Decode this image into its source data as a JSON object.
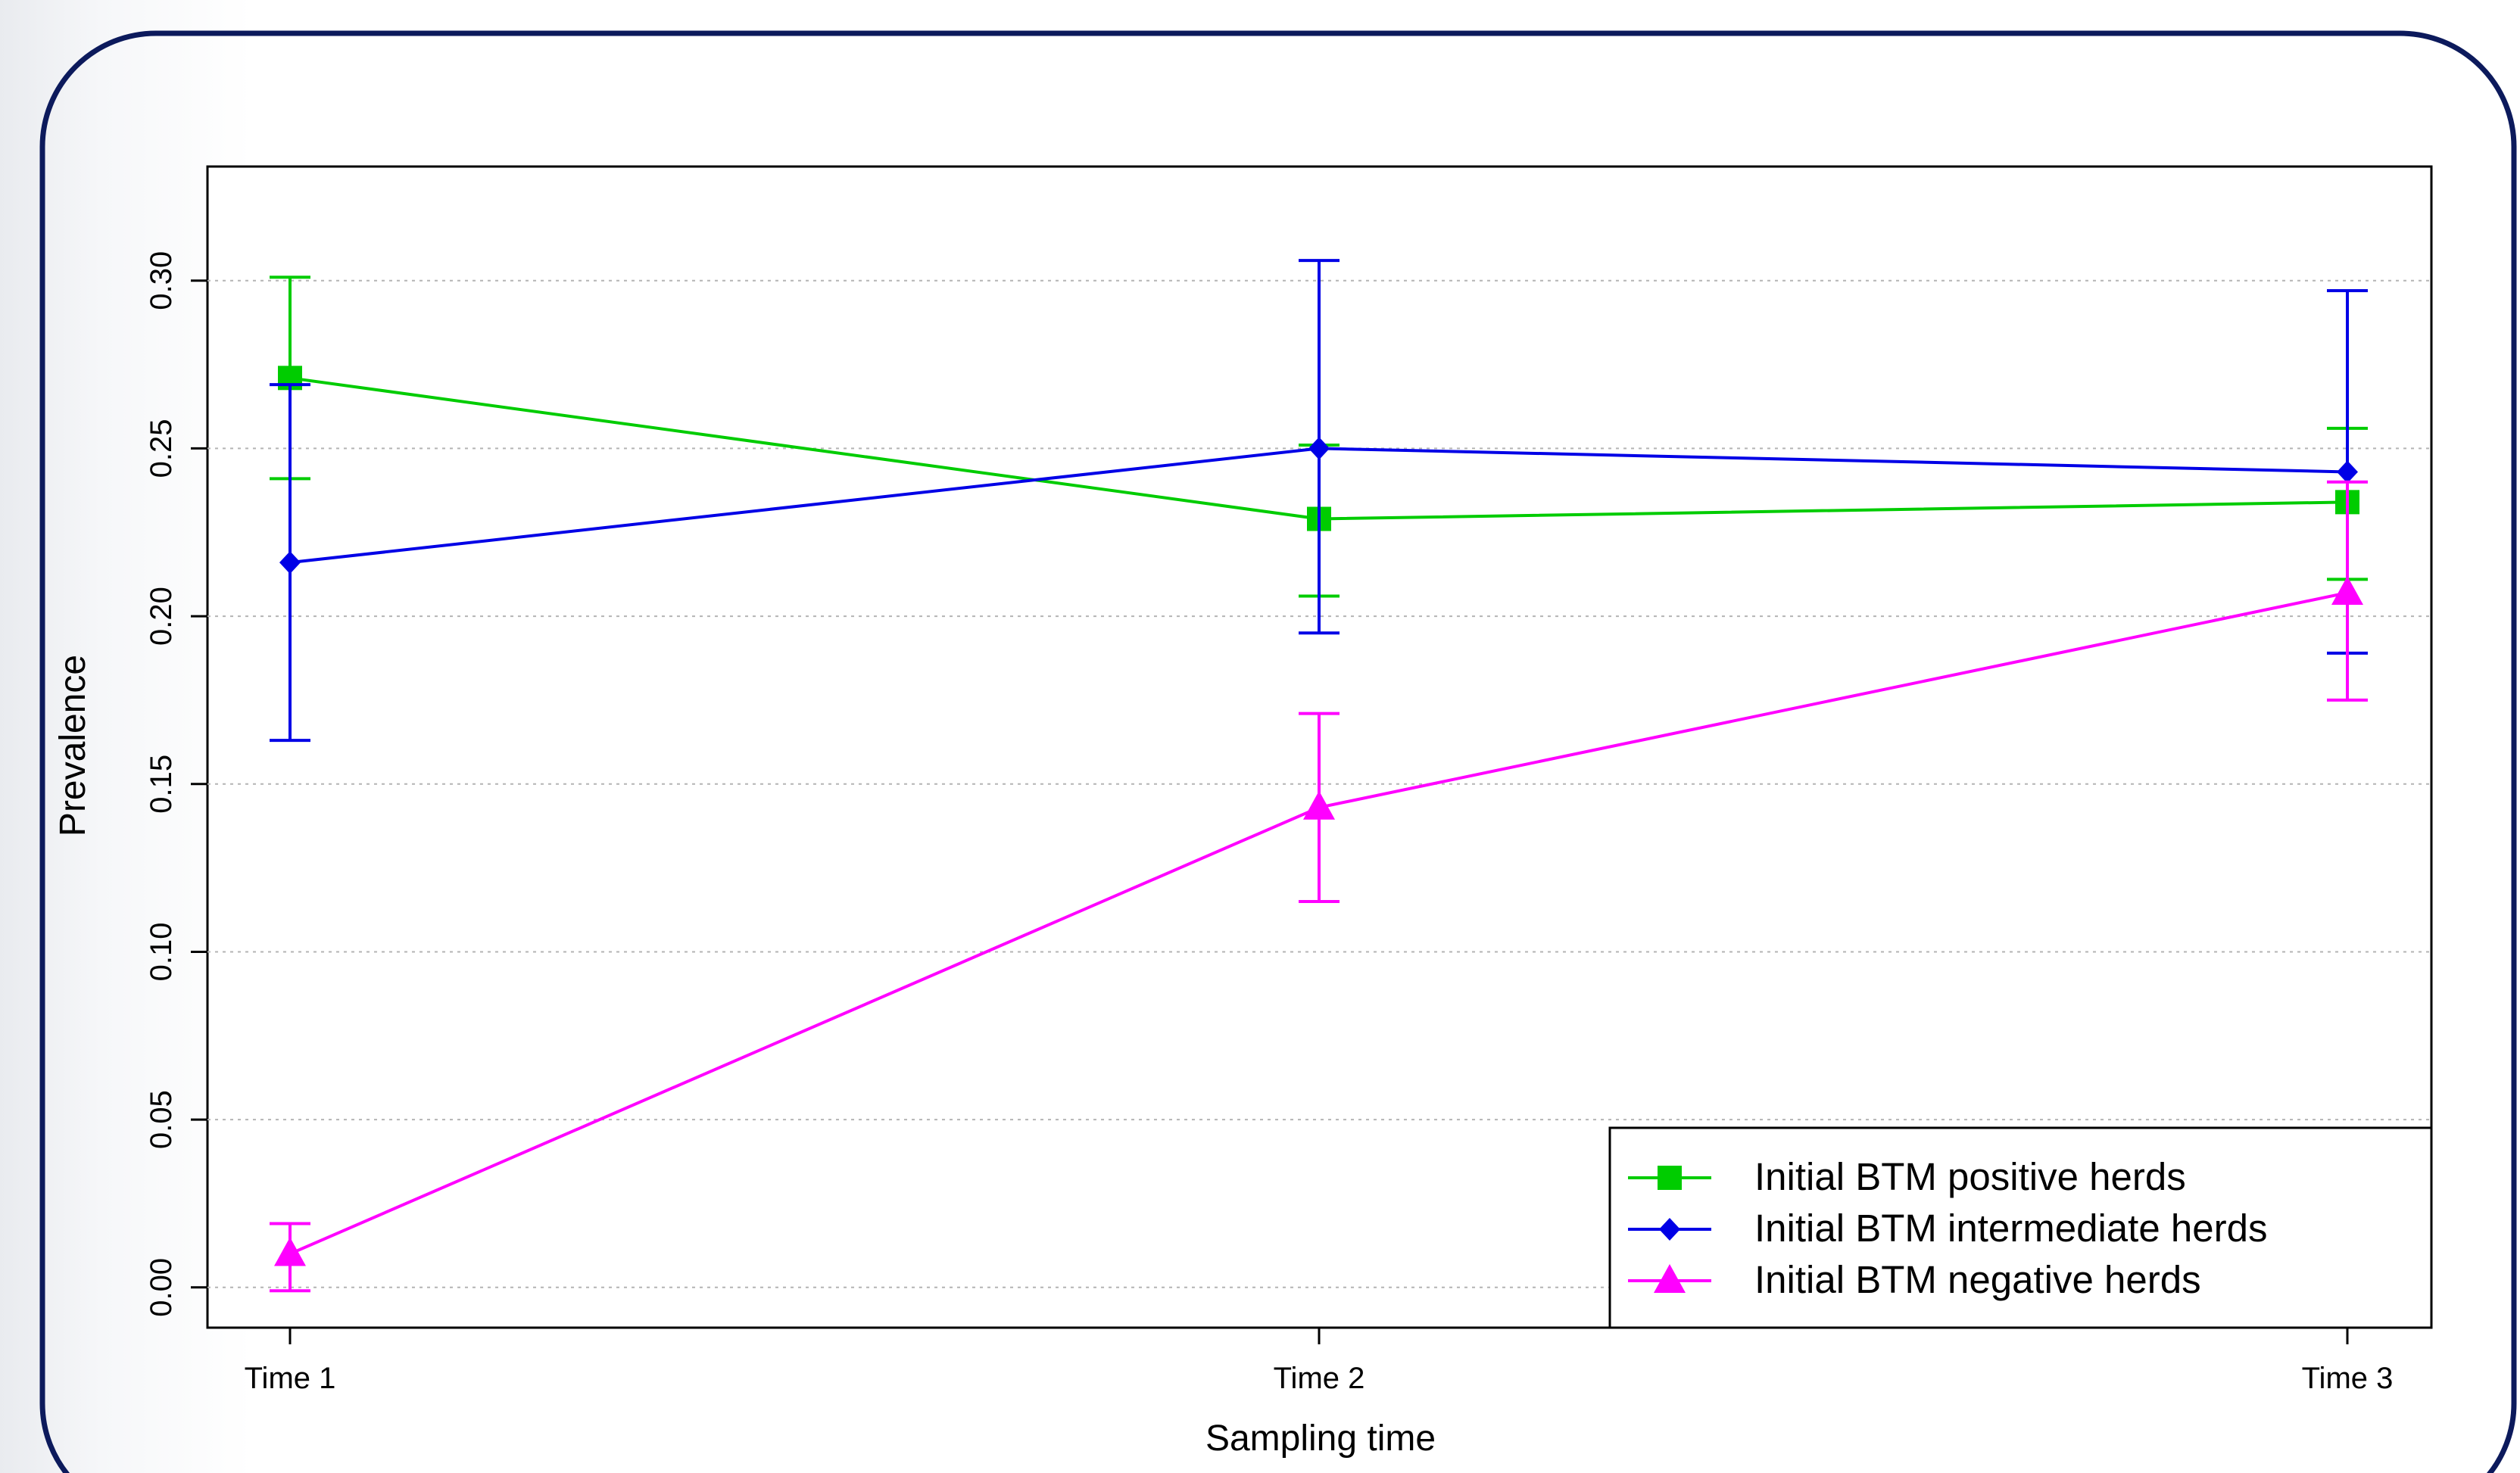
{
  "chart_data": {
    "type": "line",
    "title": "",
    "xlabel": "Sampling time",
    "ylabel": "Prevalence",
    "categories": [
      "Time 1",
      "Time 2",
      "Time 3"
    ],
    "ylim": [
      -0.012,
      0.334
    ],
    "yticks": [
      0.0,
      0.05,
      0.1,
      0.15,
      0.2,
      0.25,
      0.3
    ],
    "ytick_labels": [
      "0.00",
      "0.05",
      "0.10",
      "0.15",
      "0.20",
      "0.25",
      "0.30"
    ],
    "grid": "horizontal-dotted",
    "legend_position": "bottom-right",
    "error_bars": true,
    "series": [
      {
        "name": "Initial BTM positive herds",
        "color": "#00cc00",
        "marker": "square",
        "values": [
          0.271,
          0.229,
          0.234
        ],
        "lower": [
          0.241,
          0.206,
          0.211
        ],
        "upper": [
          0.301,
          0.251,
          0.256
        ]
      },
      {
        "name": "Initial BTM intermediate herds",
        "color": "#0000e6",
        "marker": "diamond",
        "values": [
          0.216,
          0.25,
          0.243
        ],
        "lower": [
          0.163,
          0.195,
          0.189
        ],
        "upper": [
          0.269,
          0.306,
          0.297
        ]
      },
      {
        "name": "Initial BTM negative herds",
        "color": "#ff00ff",
        "marker": "triangle",
        "values": [
          0.01,
          0.143,
          0.207
        ],
        "lower": [
          -0.001,
          0.115,
          0.175
        ],
        "upper": [
          0.019,
          0.171,
          0.24
        ]
      }
    ]
  }
}
